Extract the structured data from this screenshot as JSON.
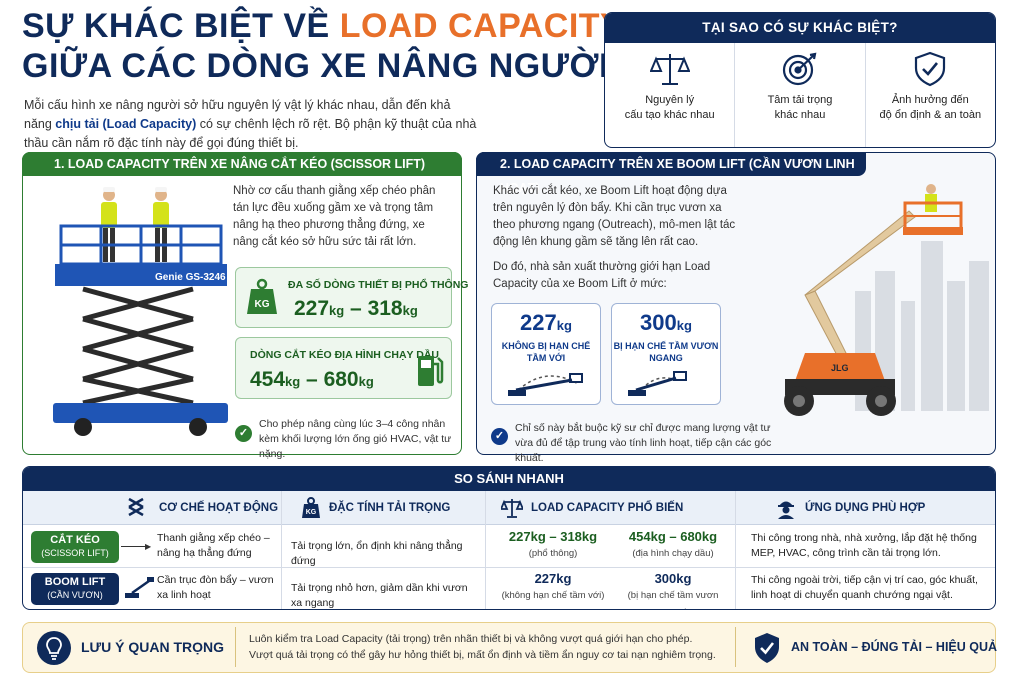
{
  "title": {
    "line1_prefix": "SỰ KHÁC BIỆT VỀ ",
    "line1_highlight": "LOAD CAPACITY",
    "line2": "GIỮA CÁC DÒNG XE NÂNG NGƯỜI"
  },
  "intro": {
    "part1": "Mỗi cấu hình xe nâng người sở hữu nguyên lý vật lý khác nhau, dẫn đến khả năng ",
    "highlight": "chịu tải (Load Capacity)",
    "part2": " có sự chênh lệch rõ rệt. Bộ phận kỹ thuật của nhà thầu cần nắm rõ đặc tính này để gọi đúng thiết bị."
  },
  "why": {
    "heading": "TẠI SAO CÓ SỰ KHÁC BIỆT?",
    "items": [
      {
        "line1": "Nguyên lý",
        "line2": "cấu tạo khác nhau",
        "icon": "scale-icon"
      },
      {
        "line1": "Tâm tải trọng",
        "line2": "khác nhau",
        "icon": "target-icon"
      },
      {
        "line1": "Ảnh hưởng đến",
        "line2": "độ ổn định & an toàn",
        "icon": "shield-check-icon"
      }
    ]
  },
  "scissor": {
    "heading": "1.  LOAD CAPACITY TRÊN XE NÂNG CẮT KÉO (SCISSOR LIFT)",
    "desc": "Nhờ cơ cấu thanh giằng xếp chéo phân tán lực đều xuống gầm xe và trọng tâm nâng hạ theo phương thẳng đứng, xe nâng cắt kéo sở hữu sức tải rất lớn.",
    "machine_label": "Genie GS-3246",
    "box1_label": "ĐA SỐ DÒNG THIẾT BỊ PHỔ THÔNG",
    "box1_value_a": "227",
    "box1_value_b": "318",
    "unit": "kg",
    "dash": " – ",
    "box2_label": "DÒNG CẮT KÉO ĐỊA HÌNH CHẠY DẦU",
    "box2_value_a": "454",
    "box2_value_b": "680",
    "kg_badge": "KG",
    "note": "Cho phép nâng cùng lúc 3–4 công nhân kèm khối lượng lớn ống gió HVAC, vật tư nặng."
  },
  "boom": {
    "heading": "2.  LOAD CAPACITY TRÊN XE BOOM LIFT (CẦN VƯƠN LINH HOẠT)",
    "desc1": "Khác với cắt kéo, xe Boom Lift hoạt động dựa trên nguyên lý đòn bẩy. Khi cần trục vươn xa theo phương ngang (Outreach), mô-men lật tác động lên khung gầm sẽ tăng lên rất cao.",
    "desc2": "Do đó, nhà sản xuất thường giới hạn Load Capacity của xe Boom Lift ở mức:",
    "box1_value": "227",
    "box1_label": "KHÔNG BỊ HẠN CHẾ TẦM VỚI",
    "box2_value": "300",
    "box2_label": "BỊ HẠN CHẾ TẦM VƯƠN NGANG",
    "unit": "kg",
    "machine_label": "JLG",
    "note": "Chỉ số này bắt buộc kỹ sư chỉ được mang lượng vật tư vừa đủ để tập trung vào tính linh hoạt, tiếp cận các góc khuất."
  },
  "compare": {
    "heading": "SO SÁNH NHANH",
    "headers": {
      "mechanism": "CƠ CHẾ HOẠT ĐỘNG",
      "load_trait": "ĐẶC TÍNH TẢI TRỌNG",
      "capacity": "LOAD CAPACITY PHỔ BIẾN",
      "application": "ỨNG DỤNG PHÙ HỢP"
    },
    "kg_badge": "KG",
    "rows": [
      {
        "tag_line1": "CẮT KÉO",
        "tag_line2": "(SCISSOR LIFT)",
        "mechanism": "Thanh giằng xếp chéo – nâng hạ thẳng đứng",
        "load_trait": "Tải trọng lớn, ổn định khi nâng thẳng đứng",
        "cap1_value": "227kg – 318kg",
        "cap1_note": "(phổ thông)",
        "cap2_value": "454kg – 680kg",
        "cap2_note": "(địa hình chạy dầu)",
        "application": "Thi công trong nhà, nhà xưởng, lắp đặt hệ thống MEP, HVAC, công trình cần tải trọng lớn."
      },
      {
        "tag_line1": "BOOM LIFT",
        "tag_line2": "(CẦN VƯƠN)",
        "mechanism": "Cần trục đòn bẩy – vươn xa linh hoạt",
        "load_trait": "Tải trọng nhỏ hơn, giảm dần khi vươn xa ngang",
        "cap1_value": "227kg",
        "cap1_note": "(không hạn chế tầm với)",
        "cap2_value": "300kg",
        "cap2_note": "(bị hạn chế tầm vươn ngang)",
        "application": "Thi công ngoài trời, tiếp cận vị trí cao, góc khuất, linh hoạt di chuyển quanh chướng ngại vật."
      }
    ]
  },
  "note": {
    "heading": "LƯU Ý QUAN TRỌNG",
    "line1": "Luôn kiểm tra Load Capacity (tải trọng) trên nhãn thiết bị và không vượt quá giới hạn cho phép.",
    "line2": "Vượt quá tải trọng có thể gây hư hỏng thiết bị, mất ổn định và tiềm ẩn nguy cơ tai nạn nghiêm trọng.",
    "slogan": "AN TOÀN – ĐÚNG TẢI – HIỆU QUẢ"
  },
  "colors": {
    "navy": "#0f2a5a",
    "orange": "#e8702a",
    "green": "#2e7d32",
    "blue": "#0f3a8a"
  }
}
